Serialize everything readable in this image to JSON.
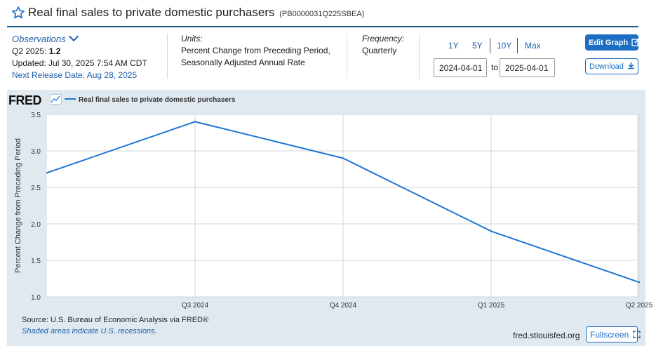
{
  "header": {
    "title": "Real final sales to private domestic purchasers",
    "series_id": "(PB0000031Q225SBEA)"
  },
  "observations": {
    "link_label": "Observations",
    "latest_period_label": "Q2 2025:",
    "latest_value": "1.2",
    "updated": "Updated: Jul 30, 2025 7:54 AM CDT",
    "next_release": "Next Release Date: Aug 28, 2025"
  },
  "units": {
    "label": "Units:",
    "line1": "Percent Change from Preceding Period,",
    "line2": "Seasonally Adjusted Annual Rate"
  },
  "frequency": {
    "label": "Frequency:",
    "value": "Quarterly"
  },
  "range": {
    "buttons": [
      "1Y",
      "5Y",
      "10Y",
      "Max"
    ],
    "start": "2024-04-01",
    "to_label": "to",
    "end": "2025-04-01"
  },
  "buttons": {
    "edit_graph": "Edit Graph",
    "download": "Download",
    "fullscreen": "Fullscreen"
  },
  "graph": {
    "logo": "FRED",
    "source": "Source: U.S. Bureau of Economic Analysis via FRED®",
    "shaded_note": "Shaded areas indicate U.S. recessions.",
    "site": "fred.stlouisfed.org"
  },
  "colors": {
    "series_line": "#1f78d1",
    "accent": "#1b6ec2",
    "panel_bg": "#e1e9f0"
  },
  "chart_data": {
    "type": "line",
    "title": "",
    "xlabel": "",
    "ylabel": "Percent Change from Preceding Period",
    "x": [
      "Q2 2024",
      "Q3 2024",
      "Q4 2024",
      "Q1 2025",
      "Q2 2025"
    ],
    "x_tick_labels": [
      "Q3 2024",
      "Q4 2024",
      "Q1 2025",
      "Q2 2025"
    ],
    "series": [
      {
        "name": "Real final sales to private domestic purchasers",
        "values": [
          2.7,
          3.4,
          2.9,
          1.9,
          1.2
        ]
      }
    ],
    "ylim": [
      1.0,
      3.5
    ],
    "yticks": [
      "1.0",
      "1.5",
      "2.0",
      "2.5",
      "3.0",
      "3.5"
    ],
    "grid": true,
    "legend": "top-left"
  }
}
